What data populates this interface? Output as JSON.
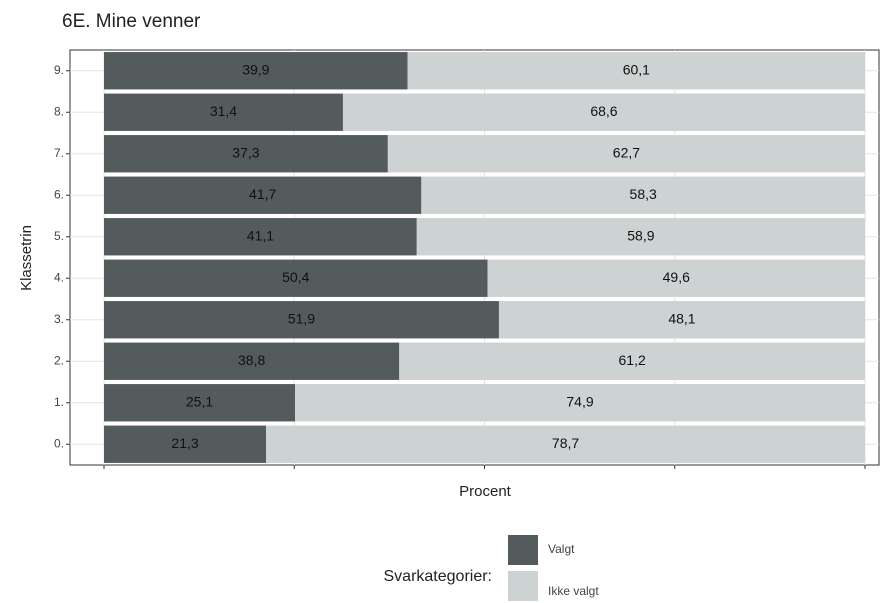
{
  "chart_data": {
    "type": "stacked-bar-horizontal",
    "title": "6E. Mine venner",
    "x_label": "Procent",
    "y_label": "Klassetrin",
    "categories": [
      "0.",
      "1.",
      "2.",
      "3.",
      "4.",
      "5.",
      "6.",
      "7.",
      "8.",
      "9."
    ],
    "series": [
      {
        "name": "Valgt",
        "color": "#545b5c",
        "values": [
          21.3,
          25.1,
          38.8,
          51.9,
          50.4,
          41.1,
          41.7,
          37.3,
          31.4,
          39.9
        ],
        "value_labels": [
          "21,3",
          "25,1",
          "38,8",
          "51,9",
          "50,4",
          "41,1",
          "41,7",
          "37,3",
          "31,4",
          "39,9"
        ]
      },
      {
        "name": "Ikke valgt",
        "color": "#cdd2d3",
        "values": [
          78.7,
          74.9,
          61.2,
          48.1,
          49.6,
          58.9,
          58.3,
          62.7,
          68.6,
          60.1
        ],
        "value_labels": [
          "78,7",
          "74,9",
          "61,2",
          "48,1",
          "49,6",
          "58,9",
          "58,3",
          "62,7",
          "68,6",
          "60,1"
        ]
      }
    ],
    "legend_title": "Svarkategorier:",
    "xlim": [
      0,
      100
    ],
    "xticks": [
      0,
      25,
      50,
      75,
      100
    ],
    "grid": true
  }
}
